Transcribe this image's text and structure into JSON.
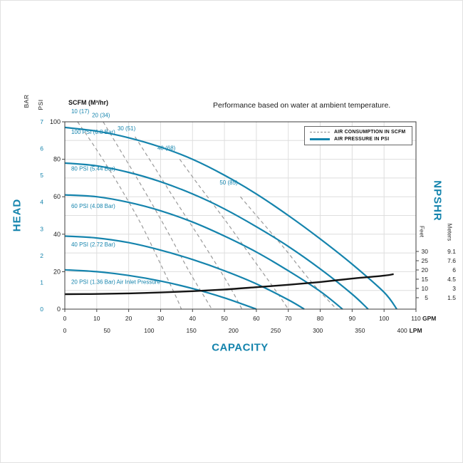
{
  "title": "Performance based on water at ambient temperature.",
  "scfm_header": "SCFM (M³/hr)",
  "colors": {
    "accent": "#1584ad",
    "dashed_gray": "#9a9a9a",
    "npshr_black": "#141414",
    "grid": "#dedede",
    "border": "#3c3c3c"
  },
  "legend": {
    "items": [
      {
        "label": "AIR CONSUMPTION IN SCFM",
        "style": "dashed"
      },
      {
        "label": "AIR PRESSURE IN PSI",
        "style": "solid"
      }
    ]
  },
  "chart_data": {
    "type": "line",
    "title": "Performance based on water at ambient temperature.",
    "xlabel": "CAPACITY",
    "ylabel_left": "HEAD",
    "ylabel_right": "NPSHR",
    "grid": true,
    "legend_position": "top-right",
    "x_range_gpm": [
      0,
      110
    ],
    "y_range_psi": [
      0,
      100
    ],
    "x_units": [
      {
        "unit": "GPM",
        "ticks": [
          0,
          10,
          20,
          30,
          40,
          50,
          60,
          70,
          80,
          90,
          100,
          110
        ]
      },
      {
        "unit": "LPM",
        "ticks": [
          0,
          50,
          100,
          150,
          200,
          250,
          300,
          350,
          400
        ]
      }
    ],
    "y_left_units": [
      {
        "unit": "PSI",
        "ticks": [
          100,
          80,
          60,
          40,
          20,
          0
        ]
      },
      {
        "unit": "BAR",
        "ticks": [
          7,
          6,
          5,
          4,
          3,
          2,
          1,
          0
        ]
      }
    ],
    "y_right_units": [
      {
        "unit": "Feet",
        "ticks": [
          30,
          25,
          20,
          15,
          10,
          5
        ]
      },
      {
        "unit": "Meters",
        "ticks": [
          9.1,
          7.6,
          6,
          4.5,
          3,
          1.5
        ]
      }
    ],
    "air_pressure_curves": [
      {
        "name": "100 PSI (6.8 Bar)",
        "label_anchor": [
          2,
          93.5
        ],
        "points": [
          [
            0,
            97
          ],
          [
            10,
            95
          ],
          [
            20,
            91.5
          ],
          [
            30,
            86.5
          ],
          [
            40,
            80
          ],
          [
            50,
            71.5
          ],
          [
            60,
            61.5
          ],
          [
            70,
            50
          ],
          [
            80,
            37.5
          ],
          [
            90,
            24
          ],
          [
            100,
            9
          ],
          [
            104,
            0
          ]
        ]
      },
      {
        "name": "80 PSI (5.44 Bar)",
        "label_anchor": [
          2,
          74
        ],
        "points": [
          [
            0,
            78
          ],
          [
            10,
            76.5
          ],
          [
            20,
            73
          ],
          [
            30,
            68
          ],
          [
            40,
            61.5
          ],
          [
            50,
            53.5
          ],
          [
            60,
            44
          ],
          [
            70,
            33.5
          ],
          [
            80,
            21.5
          ],
          [
            90,
            8
          ],
          [
            95,
            0
          ]
        ]
      },
      {
        "name": "60 PSI (4.08 Bar)",
        "label_anchor": [
          2,
          54
        ],
        "points": [
          [
            0,
            61
          ],
          [
            10,
            60
          ],
          [
            20,
            57
          ],
          [
            30,
            52.5
          ],
          [
            40,
            46.5
          ],
          [
            50,
            39
          ],
          [
            60,
            30.5
          ],
          [
            70,
            20.5
          ],
          [
            80,
            9.5
          ],
          [
            87,
            0
          ]
        ]
      },
      {
        "name": "40 PSI (2.72 Bar)",
        "label_anchor": [
          2,
          33.5
        ],
        "points": [
          [
            0,
            39
          ],
          [
            10,
            38
          ],
          [
            20,
            35.5
          ],
          [
            30,
            31.5
          ],
          [
            40,
            26.5
          ],
          [
            50,
            20.5
          ],
          [
            60,
            13.5
          ],
          [
            70,
            5
          ],
          [
            75,
            0
          ]
        ]
      },
      {
        "name": "20 PSI (1.36 Bar) Air Inlet Pressure",
        "label_anchor": [
          2,
          13.5
        ],
        "points": [
          [
            0,
            21
          ],
          [
            10,
            20
          ],
          [
            20,
            18
          ],
          [
            30,
            15
          ],
          [
            40,
            11
          ],
          [
            50,
            6
          ],
          [
            60,
            0
          ]
        ]
      }
    ],
    "air_consumption_curves": [
      {
        "name": "10 (17)",
        "label_anchor": [
          2,
          104.5
        ],
        "points": [
          [
            4,
            100
          ],
          [
            10,
            85
          ],
          [
            17,
            66
          ],
          [
            24,
            45
          ],
          [
            30,
            24
          ],
          [
            35,
            6
          ],
          [
            36.5,
            0
          ]
        ]
      },
      {
        "name": "20 (34)",
        "label_anchor": [
          8.5,
          102.5
        ],
        "points": [
          [
            12,
            100
          ],
          [
            18,
            83
          ],
          [
            25,
            63
          ],
          [
            32,
            42
          ],
          [
            39,
            20
          ],
          [
            45,
            3
          ],
          [
            46,
            0
          ]
        ]
      },
      {
        "name": "30 (51)",
        "label_anchor": [
          16.5,
          95.5
        ],
        "points": [
          [
            22,
            92
          ],
          [
            28,
            76
          ],
          [
            35,
            57
          ],
          [
            43,
            36
          ],
          [
            51,
            14
          ],
          [
            55.5,
            0
          ]
        ]
      },
      {
        "name": "40 (68)",
        "label_anchor": [
          29,
          85
        ],
        "points": [
          [
            36,
            80
          ],
          [
            42,
            66
          ],
          [
            50,
            48
          ],
          [
            58,
            29
          ],
          [
            66,
            10
          ],
          [
            70,
            0
          ]
        ]
      },
      {
        "name": "50 (85)",
        "label_anchor": [
          48.5,
          66.5
        ],
        "points": [
          [
            55,
            60
          ],
          [
            61,
            48
          ],
          [
            69,
            32
          ],
          [
            77,
            15
          ],
          [
            84,
            2
          ],
          [
            85.5,
            0
          ]
        ]
      }
    ],
    "npshr_curve": {
      "name": "NPSHR",
      "points": [
        [
          0,
          8
        ],
        [
          10,
          8.1
        ],
        [
          20,
          8.4
        ],
        [
          30,
          8.9
        ],
        [
          40,
          9.6
        ],
        [
          50,
          10.5
        ],
        [
          60,
          11.7
        ],
        [
          70,
          13
        ],
        [
          80,
          14.5
        ],
        [
          90,
          16.3
        ],
        [
          100,
          17.9
        ],
        [
          103,
          18.7
        ]
      ]
    }
  }
}
